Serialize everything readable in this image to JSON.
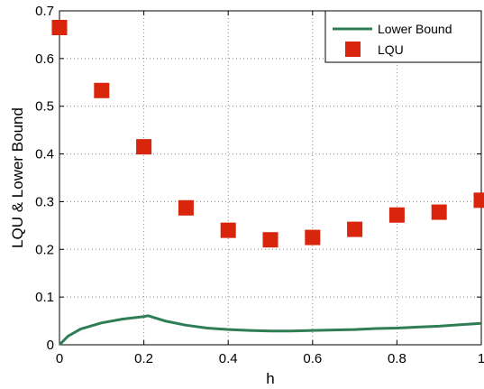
{
  "chart_data": {
    "type": "line",
    "title": "",
    "xlabel": "h",
    "ylabel": "LQU & Lower Bound",
    "xlim": [
      0,
      1
    ],
    "ylim": [
      0,
      0.7
    ],
    "xticks": [
      0,
      0.2,
      0.4,
      0.6,
      0.8,
      1
    ],
    "yticks": [
      0,
      0.1,
      0.2,
      0.3,
      0.4,
      0.5,
      0.6,
      0.7
    ],
    "xtick_labels": [
      "0",
      "0.2",
      "0.4",
      "0.6",
      "0.8",
      "1"
    ],
    "ytick_labels": [
      "0",
      "0.1",
      "0.2",
      "0.3",
      "0.4",
      "0.5",
      "0.6",
      "0.7"
    ],
    "grid": true,
    "grid_style": "dotted",
    "legend_position": "top-right",
    "series": [
      {
        "name": "Lower Bound",
        "kind": "line",
        "color": "#2e7d55",
        "x": [
          0,
          0.02,
          0.05,
          0.1,
          0.15,
          0.2,
          0.21,
          0.25,
          0.3,
          0.35,
          0.4,
          0.45,
          0.5,
          0.55,
          0.6,
          0.65,
          0.7,
          0.75,
          0.8,
          0.85,
          0.9,
          0.95,
          1.0
        ],
        "y": [
          0,
          0.018,
          0.033,
          0.046,
          0.054,
          0.059,
          0.061,
          0.05,
          0.041,
          0.035,
          0.032,
          0.03,
          0.029,
          0.029,
          0.03,
          0.031,
          0.032,
          0.034,
          0.035,
          0.037,
          0.039,
          0.042,
          0.045
        ]
      },
      {
        "name": "LQU",
        "kind": "marker",
        "color": "#d9250b",
        "x": [
          0,
          0.1,
          0.2,
          0.3,
          0.4,
          0.5,
          0.6,
          0.7,
          0.8,
          0.9,
          1.0
        ],
        "y": [
          0.665,
          0.533,
          0.415,
          0.287,
          0.24,
          0.22,
          0.225,
          0.242,
          0.272,
          0.278,
          0.303
        ]
      }
    ]
  }
}
